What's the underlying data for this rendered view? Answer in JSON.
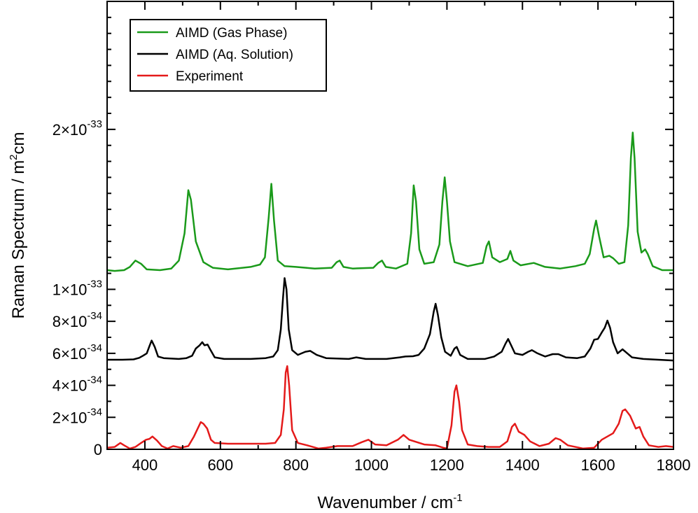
{
  "chart_data": {
    "type": "line",
    "title": "",
    "xlabel": "Wavenumber / cm",
    "xlabel_sup": "-1",
    "ylabel": "Raman Spectrum / m",
    "ylabel_sup": "2",
    "ylabel_tail": "cm",
    "xlim": [
      300,
      1800
    ],
    "ylim": [
      0,
      2.8e-33
    ],
    "grid": false,
    "legend_position": "top-left",
    "x_ticks": [
      400,
      600,
      800,
      1000,
      1200,
      1400,
      1600,
      1800
    ],
    "y_tick_labels": [
      {
        "value": 0,
        "base": "0",
        "exp": ""
      },
      {
        "value": 2e-34,
        "base": "2×10",
        "exp": "-34"
      },
      {
        "value": 4e-34,
        "base": "4×10",
        "exp": "-34"
      },
      {
        "value": 6e-34,
        "base": "6×10",
        "exp": "-34"
      },
      {
        "value": 8e-34,
        "base": "8×10",
        "exp": "-34"
      },
      {
        "value": 1e-33,
        "base": "1×10",
        "exp": "-33"
      },
      {
        "value": 2e-33,
        "base": "2×10",
        "exp": "-33"
      }
    ],
    "series": [
      {
        "name": "AIMD (Gas Phase)",
        "color": "#1a9a1a",
        "points": [
          [
            300,
            1.12e-33
          ],
          [
            320,
            1.115e-33
          ],
          [
            345,
            1.12e-33
          ],
          [
            360,
            1.14e-33
          ],
          [
            375,
            1.18e-33
          ],
          [
            390,
            1.16e-33
          ],
          [
            405,
            1.125e-33
          ],
          [
            440,
            1.12e-33
          ],
          [
            470,
            1.13e-33
          ],
          [
            490,
            1.18e-33
          ],
          [
            505,
            1.35e-33
          ],
          [
            515,
            1.62e-33
          ],
          [
            522,
            1.56e-33
          ],
          [
            535,
            1.3e-33
          ],
          [
            555,
            1.17e-33
          ],
          [
            580,
            1.135e-33
          ],
          [
            620,
            1.125e-33
          ],
          [
            680,
            1.14e-33
          ],
          [
            705,
            1.155e-33
          ],
          [
            718,
            1.2e-33
          ],
          [
            728,
            1.45e-33
          ],
          [
            735,
            1.66e-33
          ],
          [
            742,
            1.43e-33
          ],
          [
            752,
            1.18e-33
          ],
          [
            770,
            1.145e-33
          ],
          [
            800,
            1.14e-33
          ],
          [
            850,
            1.13e-33
          ],
          [
            895,
            1.135e-33
          ],
          [
            908,
            1.17e-33
          ],
          [
            916,
            1.18e-33
          ],
          [
            926,
            1.14e-33
          ],
          [
            950,
            1.13e-33
          ],
          [
            1005,
            1.135e-33
          ],
          [
            1018,
            1.165e-33
          ],
          [
            1028,
            1.18e-33
          ],
          [
            1038,
            1.14e-33
          ],
          [
            1065,
            1.13e-33
          ],
          [
            1095,
            1.16e-33
          ],
          [
            1105,
            1.35e-33
          ],
          [
            1112,
            1.65e-33
          ],
          [
            1118,
            1.55e-33
          ],
          [
            1127,
            1.25e-33
          ],
          [
            1140,
            1.16e-33
          ],
          [
            1165,
            1.17e-33
          ],
          [
            1180,
            1.28e-33
          ],
          [
            1188,
            1.55e-33
          ],
          [
            1194,
            1.7e-33
          ],
          [
            1200,
            1.55e-33
          ],
          [
            1208,
            1.3e-33
          ],
          [
            1220,
            1.17e-33
          ],
          [
            1255,
            1.145e-33
          ],
          [
            1295,
            1.165e-33
          ],
          [
            1305,
            1.27e-33
          ],
          [
            1311,
            1.3e-33
          ],
          [
            1320,
            1.2e-33
          ],
          [
            1340,
            1.17e-33
          ],
          [
            1360,
            1.19e-33
          ],
          [
            1368,
            1.24e-33
          ],
          [
            1376,
            1.18e-33
          ],
          [
            1395,
            1.15e-33
          ],
          [
            1430,
            1.165e-33
          ],
          [
            1460,
            1.14e-33
          ],
          [
            1500,
            1.13e-33
          ],
          [
            1540,
            1.145e-33
          ],
          [
            1565,
            1.16e-33
          ],
          [
            1578,
            1.22e-33
          ],
          [
            1590,
            1.38e-33
          ],
          [
            1595,
            1.43e-33
          ],
          [
            1603,
            1.33e-33
          ],
          [
            1615,
            1.2e-33
          ],
          [
            1630,
            1.21e-33
          ],
          [
            1640,
            1.195e-33
          ],
          [
            1655,
            1.16e-33
          ],
          [
            1670,
            1.17e-33
          ],
          [
            1680,
            1.4e-33
          ],
          [
            1687,
            1.82e-33
          ],
          [
            1692,
            1.98e-33
          ],
          [
            1697,
            1.82e-33
          ],
          [
            1705,
            1.36e-33
          ],
          [
            1715,
            1.23e-33
          ],
          [
            1725,
            1.25e-33
          ],
          [
            1732,
            1.22e-33
          ],
          [
            1745,
            1.145e-33
          ],
          [
            1770,
            1.12e-33
          ],
          [
            1800,
            1.12e-33
          ]
        ]
      },
      {
        "name": "AIMD (Aq. Solution)",
        "color": "#000000",
        "points": [
          [
            300,
            5.6e-34
          ],
          [
            340,
            5.6e-34
          ],
          [
            370,
            5.62e-34
          ],
          [
            385,
            5.72e-34
          ],
          [
            395,
            5.85e-34
          ],
          [
            405,
            6e-34
          ],
          [
            413,
            6.5e-34
          ],
          [
            418,
            6.8e-34
          ],
          [
            426,
            6.4e-34
          ],
          [
            435,
            5.8e-34
          ],
          [
            450,
            5.7e-34
          ],
          [
            490,
            5.65e-34
          ],
          [
            510,
            5.7e-34
          ],
          [
            525,
            5.85e-34
          ],
          [
            535,
            6.3e-34
          ],
          [
            545,
            6.5e-34
          ],
          [
            552,
            6.7e-34
          ],
          [
            558,
            6.5e-34
          ],
          [
            566,
            6.55e-34
          ],
          [
            574,
            6.2e-34
          ],
          [
            585,
            5.75e-34
          ],
          [
            610,
            5.65e-34
          ],
          [
            680,
            5.65e-34
          ],
          [
            720,
            5.7e-34
          ],
          [
            740,
            5.8e-34
          ],
          [
            752,
            6.2e-34
          ],
          [
            760,
            7.5e-34
          ],
          [
            766,
            9.5e-34
          ],
          [
            770,
            1.07e-33
          ],
          [
            775,
            1e-33
          ],
          [
            781,
            7.5e-34
          ],
          [
            790,
            6.2e-34
          ],
          [
            805,
            5.9e-34
          ],
          [
            825,
            6.1e-34
          ],
          [
            838,
            6.15e-34
          ],
          [
            855,
            5.9e-34
          ],
          [
            880,
            5.7e-34
          ],
          [
            940,
            5.65e-34
          ],
          [
            960,
            5.75e-34
          ],
          [
            985,
            5.65e-34
          ],
          [
            1040,
            5.65e-34
          ],
          [
            1075,
            5.75e-34
          ],
          [
            1090,
            5.8e-34
          ],
          [
            1110,
            5.82e-34
          ],
          [
            1125,
            5.9e-34
          ],
          [
            1140,
            6.3e-34
          ],
          [
            1155,
            7.2e-34
          ],
          [
            1165,
            8.6e-34
          ],
          [
            1170,
            9.1e-34
          ],
          [
            1176,
            8.4e-34
          ],
          [
            1185,
            7e-34
          ],
          [
            1195,
            6.1e-34
          ],
          [
            1210,
            5.85e-34
          ],
          [
            1220,
            6.3e-34
          ],
          [
            1226,
            6.4e-34
          ],
          [
            1235,
            5.9e-34
          ],
          [
            1255,
            5.65e-34
          ],
          [
            1300,
            5.65e-34
          ],
          [
            1325,
            5.8e-34
          ],
          [
            1345,
            6.1e-34
          ],
          [
            1355,
            6.6e-34
          ],
          [
            1362,
            6.9e-34
          ],
          [
            1370,
            6.5e-34
          ],
          [
            1380,
            6e-34
          ],
          [
            1400,
            5.9e-34
          ],
          [
            1415,
            6.1e-34
          ],
          [
            1425,
            6.2e-34
          ],
          [
            1440,
            6e-34
          ],
          [
            1460,
            5.8e-34
          ],
          [
            1480,
            5.95e-34
          ],
          [
            1495,
            5.95e-34
          ],
          [
            1515,
            5.75e-34
          ],
          [
            1545,
            5.7e-34
          ],
          [
            1565,
            5.8e-34
          ],
          [
            1580,
            6.3e-34
          ],
          [
            1590,
            6.85e-34
          ],
          [
            1600,
            6.9e-34
          ],
          [
            1610,
            7.3e-34
          ],
          [
            1618,
            7.6e-34
          ],
          [
            1625,
            8.05e-34
          ],
          [
            1632,
            7.6e-34
          ],
          [
            1640,
            6.7e-34
          ],
          [
            1652,
            6e-34
          ],
          [
            1665,
            6.25e-34
          ],
          [
            1675,
            6.05e-34
          ],
          [
            1690,
            5.75e-34
          ],
          [
            1720,
            5.65e-34
          ],
          [
            1760,
            5.6e-34
          ],
          [
            1800,
            5.55e-34
          ]
        ]
      },
      {
        "name": "Experiment",
        "color": "#e41a1a",
        "points": [
          [
            300,
            1e-35
          ],
          [
            320,
            1.5e-35
          ],
          [
            335,
            4e-35
          ],
          [
            345,
            2.5e-35
          ],
          [
            360,
            5e-36
          ],
          [
            375,
            1.5e-35
          ],
          [
            390,
            4e-35
          ],
          [
            403,
            6e-35
          ],
          [
            412,
            6.5e-35
          ],
          [
            420,
            8e-35
          ],
          [
            432,
            5.5e-35
          ],
          [
            445,
            2e-35
          ],
          [
            460,
            5e-36
          ],
          [
            475,
            2e-35
          ],
          [
            495,
            1e-35
          ],
          [
            515,
            2e-35
          ],
          [
            530,
            8e-35
          ],
          [
            540,
            1.3e-34
          ],
          [
            548,
            1.7e-34
          ],
          [
            555,
            1.6e-34
          ],
          [
            565,
            1.3e-34
          ],
          [
            575,
            6e-35
          ],
          [
            585,
            4e-35
          ],
          [
            620,
            3.5e-35
          ],
          [
            680,
            3.5e-35
          ],
          [
            720,
            3.5e-35
          ],
          [
            745,
            4e-35
          ],
          [
            760,
            9e-35
          ],
          [
            768,
            2.5e-34
          ],
          [
            773,
            4.8e-34
          ],
          [
            777,
            5.2e-34
          ],
          [
            782,
            4e-34
          ],
          [
            790,
            1.2e-34
          ],
          [
            805,
            4e-35
          ],
          [
            830,
            2.5e-35
          ],
          [
            860,
            5e-36
          ],
          [
            880,
            1e-35
          ],
          [
            910,
            2e-35
          ],
          [
            950,
            2e-35
          ],
          [
            975,
            4.5e-35
          ],
          [
            992,
            6e-35
          ],
          [
            1010,
            3e-35
          ],
          [
            1040,
            2.5e-35
          ],
          [
            1070,
            6e-35
          ],
          [
            1085,
            9e-35
          ],
          [
            1100,
            6e-35
          ],
          [
            1140,
            3e-35
          ],
          [
            1170,
            2.5e-35
          ],
          [
            1190,
            1e-35
          ],
          [
            1200,
            5e-36
          ],
          [
            1212,
            1.5e-34
          ],
          [
            1220,
            3.6e-34
          ],
          [
            1225,
            4e-34
          ],
          [
            1232,
            3e-34
          ],
          [
            1240,
            1.2e-34
          ],
          [
            1255,
            3e-35
          ],
          [
            1280,
            2e-35
          ],
          [
            1310,
            1.5e-35
          ],
          [
            1340,
            1.5e-35
          ],
          [
            1360,
            5e-35
          ],
          [
            1372,
            1.4e-34
          ],
          [
            1380,
            1.6e-34
          ],
          [
            1390,
            1.1e-34
          ],
          [
            1405,
            9e-35
          ],
          [
            1420,
            5e-35
          ],
          [
            1445,
            2e-35
          ],
          [
            1470,
            3.5e-35
          ],
          [
            1488,
            7e-35
          ],
          [
            1500,
            6e-35
          ],
          [
            1520,
            2.5e-35
          ],
          [
            1560,
            5e-36
          ],
          [
            1590,
            1e-35
          ],
          [
            1610,
            6e-35
          ],
          [
            1640,
            1e-34
          ],
          [
            1655,
            1.6e-34
          ],
          [
            1665,
            2.4e-34
          ],
          [
            1672,
            2.5e-34
          ],
          [
            1685,
            2.1e-34
          ],
          [
            1700,
            1.3e-34
          ],
          [
            1710,
            1.4e-34
          ],
          [
            1720,
            8e-35
          ],
          [
            1735,
            2.5e-35
          ],
          [
            1760,
            1.5e-35
          ],
          [
            1780,
            2e-35
          ],
          [
            1800,
            1.5e-35
          ]
        ]
      }
    ]
  }
}
